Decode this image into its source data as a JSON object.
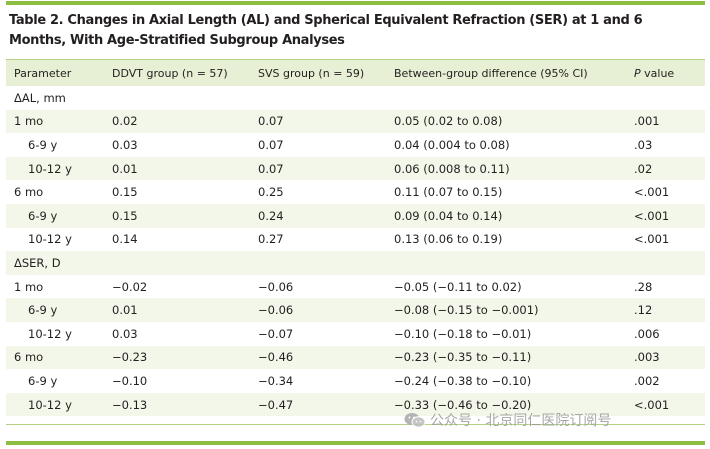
{
  "title": "Table 2. Changes in Axial Length (AL) and Spherical Equivalent Refraction (SER) at 1 and 6 Months, With Age-Stratified Subgroup Analyses",
  "headers": {
    "parameter": "Parameter",
    "ddvt": "DDVT group (n = 57)",
    "svs": "SVS group (n = 59)",
    "diff": "Between-group difference (95% CI)",
    "p_italic": "P",
    "p_rest": " value"
  },
  "rows": [
    {
      "param": "ΔAL, mm",
      "ddvt": "",
      "svs": "",
      "diff": "",
      "p": ""
    },
    {
      "param": "1 mo",
      "ddvt": "0.02",
      "svs": "0.07",
      "diff": "0.05 (0.02 to 0.08)",
      "p": ".001"
    },
    {
      "param": "6-9 y",
      "ddvt": "0.03",
      "svs": "0.07",
      "diff": "0.04 (0.004 to 0.08)",
      "p": ".03"
    },
    {
      "param": "10-12 y",
      "ddvt": "0.01",
      "svs": "0.07",
      "diff": "0.06 (0.008 to 0.11)",
      "p": ".02"
    },
    {
      "param": "6 mo",
      "ddvt": "0.15",
      "svs": "0.25",
      "diff": "0.11 (0.07 to 0.15)",
      "p": "<.001"
    },
    {
      "param": "6-9 y",
      "ddvt": "0.15",
      "svs": "0.24",
      "diff": "0.09 (0.04 to 0.14)",
      "p": "<.001"
    },
    {
      "param": "10-12 y",
      "ddvt": "0.14",
      "svs": "0.27",
      "diff": "0.13 (0.06 to 0.19)",
      "p": "<.001"
    },
    {
      "param": "ΔSER, D",
      "ddvt": "",
      "svs": "",
      "diff": "",
      "p": ""
    },
    {
      "param": "1 mo",
      "ddvt": "−0.02",
      "svs": "−0.06",
      "diff": "−0.05 (−0.11 to 0.02)",
      "p": ".28"
    },
    {
      "param": "6-9 y",
      "ddvt": "0.01",
      "svs": "−0.06",
      "diff": "−0.08 (−0.15 to −0.001)",
      "p": ".12"
    },
    {
      "param": "10-12 y",
      "ddvt": "0.03",
      "svs": "−0.07",
      "diff": "−0.10 (−0.18 to −0.01)",
      "p": ".006"
    },
    {
      "param": "6 mo",
      "ddvt": "−0.23",
      "svs": "−0.46",
      "diff": "−0.23 (−0.35 to −0.11)",
      "p": ".003"
    },
    {
      "param": "6-9 y",
      "ddvt": "−0.10",
      "svs": "−0.34",
      "diff": "−0.24 (−0.38 to −0.10)",
      "p": ".002"
    },
    {
      "param": "10-12 y",
      "ddvt": "−0.13",
      "svs": "−0.47",
      "diff": "−0.33 (−0.46 to −0.20)",
      "p": "<.001"
    }
  ],
  "watermark": "公众号 · 北京同仁医院订阅号",
  "colors": {
    "rule": "#8cbf3f",
    "header_bg": "#e7f0d4",
    "row_alt_bg": "#f3f7ea"
  }
}
